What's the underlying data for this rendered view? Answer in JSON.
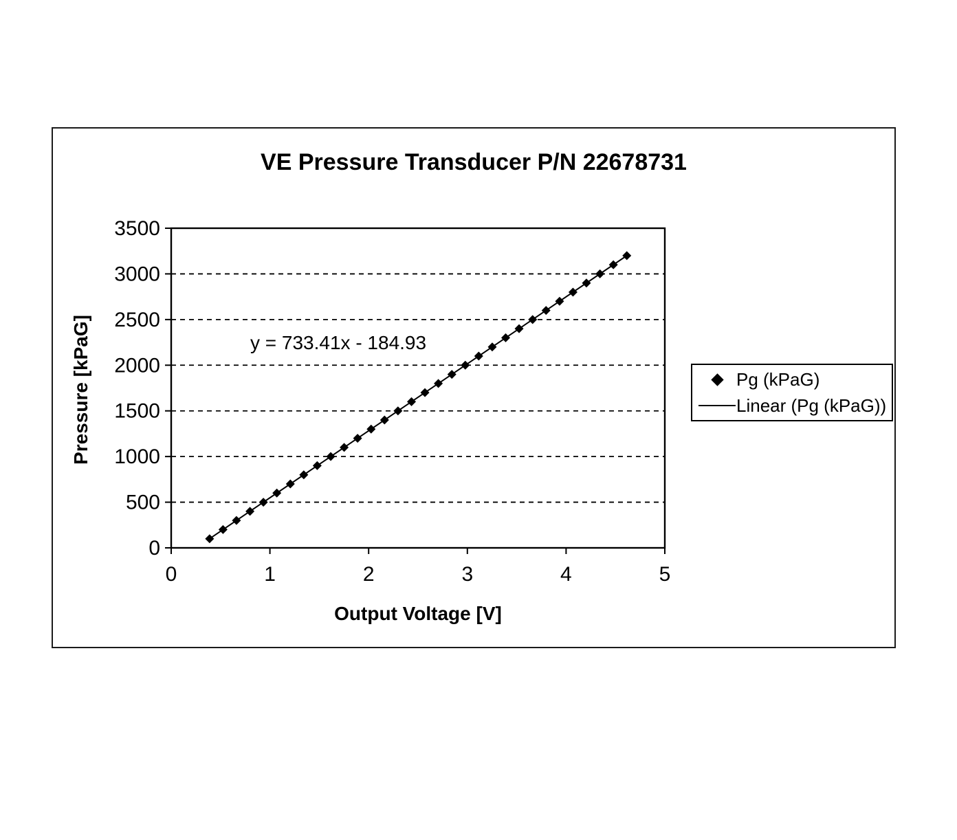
{
  "figure": {
    "background": "#ffffff",
    "border_color": "#000000",
    "text_color": "#000000"
  },
  "chart_data": {
    "type": "scatter",
    "title": "VE Pressure Transducer P/N 22678731",
    "xlabel": "Output Voltage [V]",
    "ylabel": "Pressure [kPaG]",
    "xlim": [
      0,
      5
    ],
    "ylim": [
      0,
      3500
    ],
    "x_ticks": [
      0,
      1,
      2,
      3,
      4,
      5
    ],
    "y_ticks": [
      0,
      500,
      1000,
      1500,
      2000,
      2500,
      3000,
      3500
    ],
    "grid": "horizontal-dashed",
    "legend_position": "right",
    "annotation": "y = 733.41x - 184.93",
    "trendline": {
      "slope": 733.41,
      "intercept": -184.93,
      "x_start": 0.389,
      "x_end": 4.615
    },
    "legend": [
      {
        "label": "Pg (kPaG)",
        "marker": "diamond"
      },
      {
        "label": "Linear (Pg (kPaG))",
        "marker": "line"
      }
    ],
    "series": [
      {
        "name": "Pg (kPaG)",
        "marker": "diamond",
        "color": "#000000",
        "points": [
          [
            0.389,
            100
          ],
          [
            0.525,
            200
          ],
          [
            0.661,
            300
          ],
          [
            0.798,
            400
          ],
          [
            0.934,
            500
          ],
          [
            1.07,
            600
          ],
          [
            1.207,
            700
          ],
          [
            1.343,
            800
          ],
          [
            1.479,
            900
          ],
          [
            1.616,
            1000
          ],
          [
            1.752,
            1100
          ],
          [
            1.888,
            1200
          ],
          [
            2.025,
            1300
          ],
          [
            2.161,
            1400
          ],
          [
            2.297,
            1500
          ],
          [
            2.434,
            1600
          ],
          [
            2.57,
            1700
          ],
          [
            2.706,
            1800
          ],
          [
            2.843,
            1900
          ],
          [
            2.979,
            2000
          ],
          [
            3.115,
            2100
          ],
          [
            3.252,
            2200
          ],
          [
            3.388,
            2300
          ],
          [
            3.524,
            2400
          ],
          [
            3.661,
            2500
          ],
          [
            3.797,
            2600
          ],
          [
            3.934,
            2700
          ],
          [
            4.07,
            2800
          ],
          [
            4.206,
            2900
          ],
          [
            4.343,
            3000
          ],
          [
            4.479,
            3100
          ],
          [
            4.615,
            3200
          ]
        ]
      }
    ]
  }
}
